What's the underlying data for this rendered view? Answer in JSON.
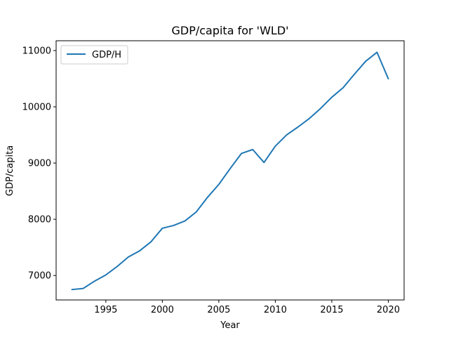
{
  "chart_data": {
    "type": "line",
    "title": "GDP/capita for 'WLD'",
    "xlabel": "Year",
    "ylabel": "GDP/capita",
    "xlim": [
      1990.6,
      2021.4
    ],
    "ylim": [
      6565,
      11175
    ],
    "x_ticks": [
      1995,
      2000,
      2005,
      2010,
      2015,
      2020
    ],
    "y_ticks": [
      7000,
      8000,
      9000,
      10000,
      11000
    ],
    "grid": false,
    "legend": {
      "position": "top-left",
      "entries": [
        "GDP/H"
      ]
    },
    "series": [
      {
        "name": "GDP/H",
        "color": "#1f77b4",
        "x": [
          1992,
          1993,
          1994,
          1995,
          1996,
          1997,
          1998,
          1999,
          2000,
          2001,
          2002,
          2003,
          2004,
          2005,
          2006,
          2007,
          2008,
          2009,
          2010,
          2011,
          2012,
          2013,
          2014,
          2015,
          2016,
          2017,
          2018,
          2019,
          2020
        ],
        "y": [
          6750,
          6770,
          6900,
          7010,
          7160,
          7330,
          7440,
          7600,
          7840,
          7890,
          7970,
          8130,
          8390,
          8620,
          8900,
          9170,
          9240,
          9010,
          9300,
          9500,
          9640,
          9790,
          9970,
          10170,
          10340,
          10580,
          10810,
          10970,
          10500
        ]
      }
    ]
  }
}
